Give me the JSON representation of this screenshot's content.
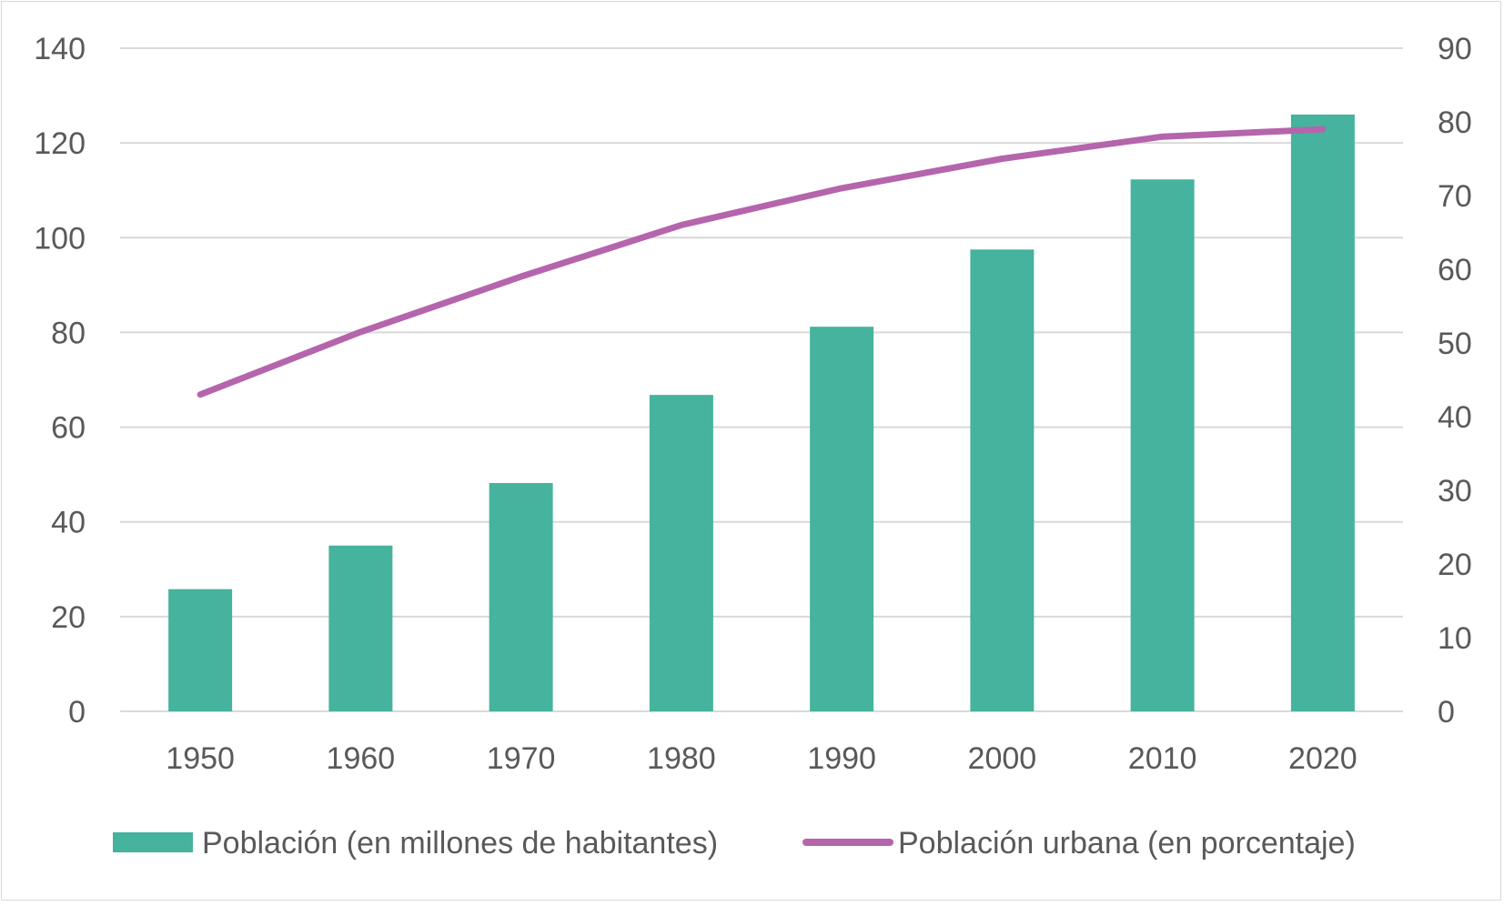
{
  "chart_data": {
    "type": "bar",
    "categories": [
      "1950",
      "1960",
      "1970",
      "1980",
      "1990",
      "2000",
      "2010",
      "2020"
    ],
    "series": [
      {
        "name": "Población (en millones de habitantes)",
        "type": "bar",
        "axis": "left",
        "color": "#45b39d",
        "values": [
          25.8,
          35,
          48.2,
          66.8,
          81.2,
          97.5,
          112.3,
          126
        ]
      },
      {
        "name": "Población urbana (en porcentaje)",
        "type": "line",
        "axis": "right",
        "color": "#b565ac",
        "values": [
          43,
          51.5,
          59,
          66,
          71,
          75,
          78,
          79
        ]
      }
    ],
    "y_left": {
      "min": 0,
      "max": 140,
      "ticks": [
        "0",
        "20",
        "40",
        "60",
        "80",
        "100",
        "120",
        "140"
      ]
    },
    "y_right": {
      "min": 0,
      "max": 90,
      "ticks": [
        "0",
        "10",
        "20",
        "30",
        "40",
        "50",
        "60",
        "70",
        "80",
        "90"
      ]
    },
    "title": "",
    "xlabel": "",
    "ylabel": "",
    "grid": true,
    "legend_position": "bottom"
  }
}
